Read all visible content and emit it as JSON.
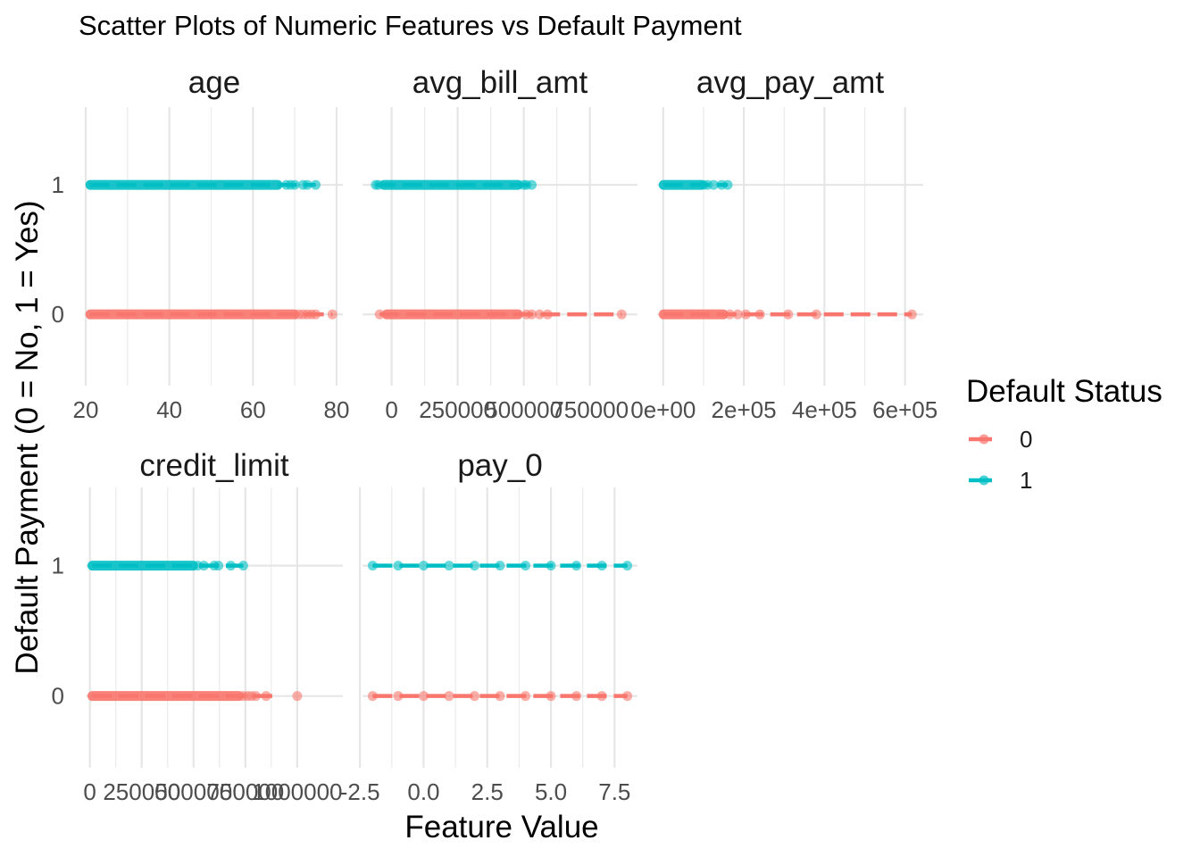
{
  "chart_data": {
    "type": "scatter",
    "title": "Scatter Plots of Numeric Features vs Default Payment",
    "xlabel": "Feature Value",
    "ylabel": "Default Payment (0 = No, 1 = Yes)",
    "y_ticks": [
      {
        "value": 1,
        "label": "1"
      },
      {
        "value": 0,
        "label": "0"
      }
    ],
    "ylim": [
      -0.55,
      1.6
    ],
    "grid": true,
    "legend": {
      "title": "Default Status",
      "position": "right",
      "entries": [
        {
          "label": "0",
          "color": "#F8766D"
        },
        {
          "label": "1",
          "color": "#00BFC4"
        }
      ]
    },
    "facets": [
      {
        "name": "age",
        "xlim": [
          20,
          81.5
        ],
        "x_ticks": [
          {
            "value": 20,
            "label": "20"
          },
          {
            "value": 40,
            "label": "40"
          },
          {
            "value": 60,
            "label": "60"
          },
          {
            "value": 80,
            "label": "80"
          }
        ],
        "series": [
          {
            "name": "0",
            "color": "#F8766D",
            "y": 0,
            "dense_range": [
              21,
              70
            ],
            "points": [
              71,
              72,
              73,
              74,
              75,
              79
            ],
            "fit_end": 79
          },
          {
            "name": "1",
            "color": "#00BFC4",
            "y": 1,
            "dense_range": [
              21,
              66
            ],
            "points": [
              68,
              69,
              70,
              72,
              73,
              75
            ],
            "fit_end": 75
          }
        ]
      },
      {
        "name": "avg_bill_amt",
        "xlim": [
          -110000,
          930000
        ],
        "x_ticks": [
          {
            "value": 0,
            "label": "0"
          },
          {
            "value": 250000,
            "label": "250000"
          },
          {
            "value": 500000,
            "label": "500000"
          },
          {
            "value": 750000,
            "label": "750000"
          }
        ],
        "series": [
          {
            "name": "0",
            "color": "#F8766D",
            "y": 0,
            "dense_range": [
              -20000,
              480000
            ],
            "points": [
              -45000,
              510000,
              530000,
              560000,
              590000,
              870000
            ],
            "fit_end": 870000
          },
          {
            "name": "1",
            "color": "#00BFC4",
            "y": 1,
            "dense_range": [
              -30000,
              480000
            ],
            "points": [
              -60000,
              -50000,
              500000,
              510000,
              530000
            ],
            "fit_end": 530000
          }
        ]
      },
      {
        "name": "avg_pay_amt",
        "xlim": [
          -15000,
          645000
        ],
        "x_ticks": [
          {
            "value": 0,
            "label": "0e+00"
          },
          {
            "value": 200000,
            "label": "2e+05"
          },
          {
            "value": 400000,
            "label": "4e+05"
          },
          {
            "value": 600000,
            "label": "6e+05"
          }
        ],
        "series": [
          {
            "name": "0",
            "color": "#F8766D",
            "y": 0,
            "dense_range": [
              0,
              150000
            ],
            "points": [
              165000,
              185000,
              205000,
              240000,
              310000,
              380000,
              617000
            ],
            "fit_end": 617000
          },
          {
            "name": "1",
            "color": "#00BFC4",
            "y": 1,
            "dense_range": [
              0,
              95000
            ],
            "points": [
              100000,
              110000,
              125000,
              145000,
              160000
            ],
            "fit_end": 160000
          }
        ]
      },
      {
        "name": "credit_limit",
        "xlim": [
          -20000,
          1220000
        ],
        "x_ticks": [
          {
            "value": 0,
            "label": "0"
          },
          {
            "value": 250000,
            "label": "250000"
          },
          {
            "value": 500000,
            "label": "500000"
          },
          {
            "value": 750000,
            "label": "750000"
          },
          {
            "value": 1000000,
            "label": "1000000"
          }
        ],
        "series": [
          {
            "name": "0",
            "color": "#F8766D",
            "y": 0,
            "dense_range": [
              10000,
              720000
            ],
            "points": [
              740000,
              760000,
              780000,
              800000,
              850000,
              1000000
            ],
            "fit_end": 900000
          },
          {
            "name": "1",
            "color": "#00BFC4",
            "y": 1,
            "dense_range": [
              10000,
              500000
            ],
            "points": [
              520000,
              550000,
              600000,
              620000,
              680000,
              740000
            ],
            "fit_end": 740000
          }
        ]
      },
      {
        "name": "pay_0",
        "xlim": [
          -2.4,
          8.4
        ],
        "x_ticks": [
          {
            "value": -2.5,
            "label": "-2.5"
          },
          {
            "value": 0,
            "label": "0.0"
          },
          {
            "value": 2.5,
            "label": "2.5"
          },
          {
            "value": 5,
            "label": "5.0"
          },
          {
            "value": 7.5,
            "label": "7.5"
          }
        ],
        "series": [
          {
            "name": "0",
            "color": "#F8766D",
            "y": 0,
            "points": [
              -2,
              -1,
              0,
              1,
              2,
              3,
              4,
              5,
              6,
              7,
              8
            ],
            "fit_end": 8
          },
          {
            "name": "1",
            "color": "#00BFC4",
            "y": 1,
            "points": [
              -2,
              -1,
              0,
              1,
              2,
              3,
              4,
              5,
              6,
              7,
              8
            ],
            "fit_end": 8
          }
        ]
      }
    ]
  }
}
